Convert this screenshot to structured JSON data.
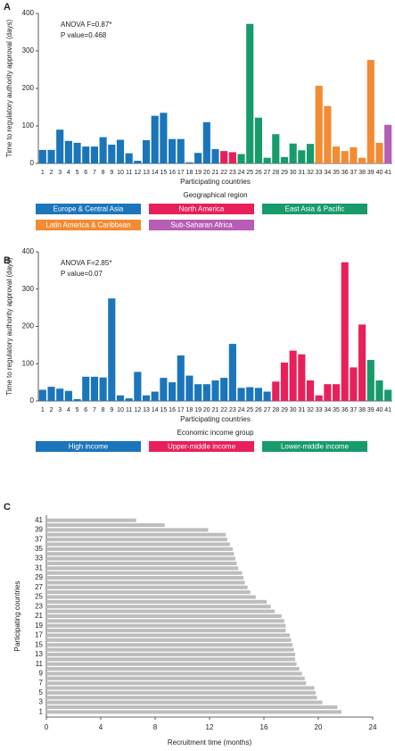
{
  "chart_data": [
    {
      "type": "bar",
      "panel": "A",
      "annotations": [
        "ANOVA F=0.87*",
        "P value=0.468"
      ],
      "y_label": "Time to regulatory authority approval (days)",
      "x_label": "Participating countries",
      "legend_title": "Geographical region",
      "categories": [
        "1",
        "2",
        "3",
        "4",
        "5",
        "6",
        "7",
        "8",
        "9",
        "10",
        "11",
        "12",
        "13",
        "14",
        "15",
        "16",
        "17",
        "18",
        "19",
        "20",
        "21",
        "22",
        "23",
        "24",
        "25",
        "26",
        "27",
        "28",
        "29",
        "30",
        "31",
        "32",
        "33",
        "34",
        "35",
        "36",
        "37",
        "38",
        "39",
        "40",
        "41"
      ],
      "ylim": [
        0,
        400
      ],
      "yticks": [
        0,
        100,
        200,
        300,
        400
      ],
      "series": [
        {
          "name": "Europe & Central Asia",
          "color": "#1b75bb",
          "values": [
            36,
            36,
            90,
            60,
            55,
            45,
            45,
            70,
            50,
            63,
            27,
            7,
            62,
            127,
            135,
            65,
            65,
            3,
            28,
            110,
            38,
            null,
            null,
            null,
            null,
            null,
            null,
            null,
            null,
            null,
            null,
            null,
            null,
            null,
            null,
            null,
            null,
            null,
            null,
            null,
            null
          ]
        },
        {
          "name": "North America",
          "color": "#e8205a",
          "values": [
            null,
            null,
            null,
            null,
            null,
            null,
            null,
            null,
            null,
            null,
            null,
            null,
            null,
            null,
            null,
            null,
            null,
            null,
            null,
            null,
            null,
            33,
            30,
            null,
            null,
            null,
            null,
            null,
            null,
            null,
            null,
            null,
            null,
            null,
            null,
            null,
            null,
            null,
            null,
            null,
            null
          ]
        },
        {
          "name": "East Asia & Pacific",
          "color": "#179b6b",
          "values": [
            null,
            null,
            null,
            null,
            null,
            null,
            null,
            null,
            null,
            null,
            null,
            null,
            null,
            null,
            null,
            null,
            null,
            null,
            null,
            null,
            null,
            null,
            null,
            25,
            372,
            122,
            15,
            78,
            17,
            53,
            35,
            52,
            null,
            null,
            null,
            null,
            null,
            null,
            null,
            null,
            null
          ]
        },
        {
          "name": "Latin America & Caribbean",
          "color": "#f38b32",
          "values": [
            null,
            null,
            null,
            null,
            null,
            null,
            null,
            null,
            null,
            null,
            null,
            null,
            null,
            null,
            null,
            null,
            null,
            null,
            null,
            null,
            null,
            null,
            null,
            null,
            null,
            null,
            null,
            null,
            null,
            null,
            null,
            null,
            207,
            153,
            45,
            33,
            43,
            15,
            276,
            55,
            null
          ]
        },
        {
          "name": "Sub-Saharan Africa",
          "color": "#b65db5",
          "values": [
            null,
            null,
            null,
            null,
            null,
            null,
            null,
            null,
            null,
            null,
            null,
            null,
            null,
            null,
            null,
            null,
            null,
            null,
            null,
            null,
            null,
            null,
            null,
            null,
            null,
            null,
            null,
            null,
            null,
            null,
            null,
            null,
            null,
            null,
            null,
            null,
            null,
            null,
            null,
            null,
            103
          ]
        }
      ]
    },
    {
      "type": "bar",
      "panel": "B",
      "annotations": [
        "ANOVA F=2.85*",
        "P value=0.07"
      ],
      "y_label": "Time to regulatory authority approval (days)",
      "x_label": "Participating countries",
      "legend_title": "Economic income group",
      "categories": [
        "1",
        "2",
        "3",
        "4",
        "5",
        "6",
        "7",
        "8",
        "9",
        "10",
        "11",
        "12",
        "13",
        "14",
        "15",
        "16",
        "17",
        "18",
        "19",
        "20",
        "21",
        "22",
        "23",
        "24",
        "25",
        "26",
        "27",
        "28",
        "29",
        "30",
        "31",
        "32",
        "33",
        "34",
        "35",
        "36",
        "37",
        "38",
        "39",
        "40",
        "41"
      ],
      "ylim": [
        0,
        400
      ],
      "yticks": [
        0,
        100,
        200,
        300,
        400
      ],
      "series": [
        {
          "name": "High income",
          "color": "#1b75bb",
          "values": [
            30,
            38,
            33,
            27,
            5,
            65,
            65,
            63,
            275,
            15,
            7,
            78,
            15,
            25,
            62,
            50,
            122,
            68,
            45,
            45,
            55,
            62,
            153,
            35,
            37,
            35,
            25,
            null,
            null,
            null,
            null,
            null,
            null,
            null,
            null,
            null,
            null,
            null,
            null,
            null,
            null
          ]
        },
        {
          "name": "Upper-middle income",
          "color": "#e8205a",
          "values": [
            null,
            null,
            null,
            null,
            null,
            null,
            null,
            null,
            null,
            null,
            null,
            null,
            null,
            null,
            null,
            null,
            null,
            null,
            null,
            null,
            null,
            null,
            null,
            null,
            null,
            null,
            null,
            52,
            103,
            135,
            125,
            55,
            15,
            45,
            45,
            372,
            90,
            205,
            null,
            null,
            null
          ]
        },
        {
          "name": "Lower-middle income",
          "color": "#179b6b",
          "values": [
            null,
            null,
            null,
            null,
            null,
            null,
            null,
            null,
            null,
            null,
            null,
            null,
            null,
            null,
            null,
            null,
            null,
            null,
            null,
            null,
            null,
            null,
            null,
            null,
            null,
            null,
            null,
            null,
            null,
            null,
            null,
            null,
            null,
            null,
            null,
            null,
            null,
            null,
            110,
            55,
            30
          ]
        }
      ]
    },
    {
      "type": "hbar",
      "panel": "C",
      "y_label": "Participating countries",
      "x_label": "Recruitment time (months)",
      "categories": [
        "1",
        null,
        "3",
        null,
        "5",
        null,
        "7",
        null,
        "9",
        null,
        "11",
        null,
        "13",
        null,
        "15",
        null,
        "17",
        null,
        "19",
        null,
        "21",
        null,
        "23",
        null,
        "25",
        null,
        "27",
        null,
        "29",
        null,
        "31",
        null,
        "33",
        null,
        "35",
        null,
        "37",
        null,
        "39",
        null,
        "41"
      ],
      "values": [
        21.7,
        21.4,
        20.3,
        19.9,
        19.8,
        19.7,
        19.1,
        19.0,
        18.8,
        18.6,
        18.4,
        18.3,
        18.3,
        18.2,
        18.1,
        18.0,
        17.9,
        17.6,
        17.6,
        17.5,
        17.3,
        16.8,
        16.5,
        16.2,
        15.4,
        15.0,
        14.8,
        14.6,
        14.5,
        14.4,
        14.1,
        14.0,
        13.9,
        13.8,
        13.7,
        13.5,
        13.3,
        13.2,
        11.9,
        8.7,
        6.6
      ],
      "color": "#bdbdbd",
      "xlim": [
        0,
        24
      ],
      "xticks": [
        0,
        4,
        8,
        12,
        16,
        20,
        24
      ]
    }
  ]
}
